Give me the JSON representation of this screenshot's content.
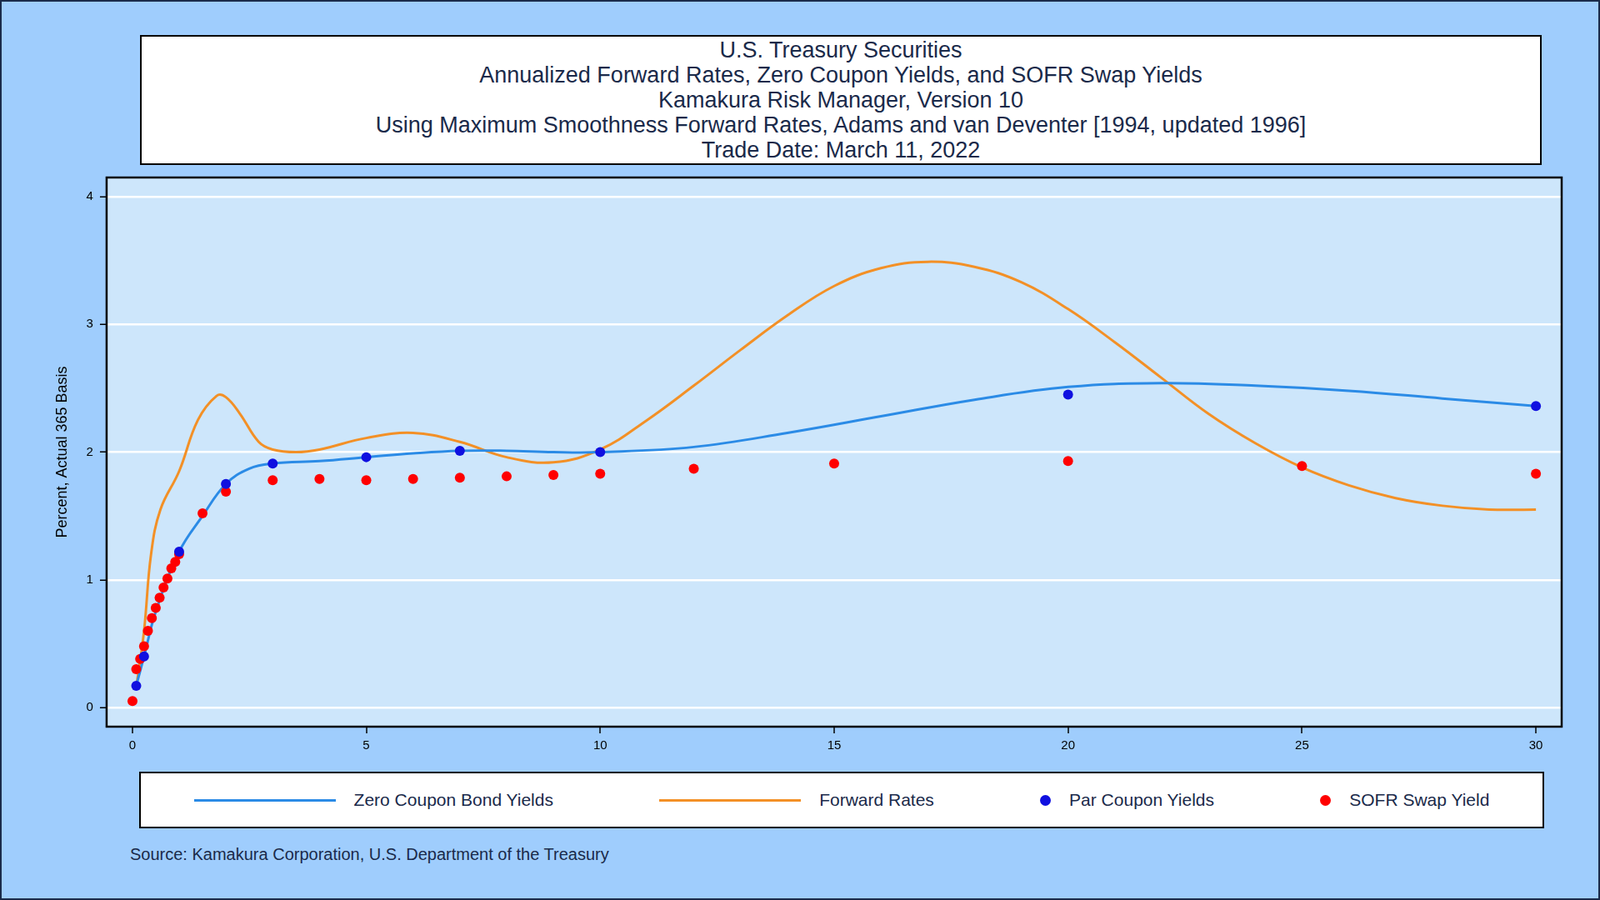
{
  "chart_data": {
    "type": "line",
    "title": [
      "U.S. Treasury Securities",
      "Annualized Forward Rates, Zero Coupon Yields, and SOFR Swap Yields",
      "Kamakura Risk Manager, Version 10",
      "Using Maximum Smoothness Forward Rates, Adams and van Deventer [1994, updated 1996]",
      "Trade Date: March 11, 2022"
    ],
    "y_label": "Percent, Actual 365 Basis",
    "source": "Source: Kamakura Corporation, U.S. Department of the Treasury",
    "xlim": [
      -0.55,
      30.55
    ],
    "xticks": [
      0,
      5,
      10,
      15,
      20,
      25,
      30
    ],
    "ylim": [
      -0.15,
      4.15
    ],
    "yticks": [
      0,
      1,
      2,
      3,
      4
    ],
    "grid": "y",
    "legend": "bottom",
    "series": [
      {
        "name": "Zero Coupon Bond Yields",
        "type": "line",
        "line_style": "solid",
        "color": "#2b8be6",
        "x": [
          0.083,
          0.25,
          0.5,
          1,
          1.5,
          2,
          2.5,
          3,
          4,
          5,
          6,
          7,
          8,
          9,
          10,
          12,
          14,
          16,
          18,
          20,
          22,
          24,
          26,
          28,
          30
        ],
        "values": [
          0.17,
          0.4,
          0.75,
          1.22,
          1.5,
          1.75,
          1.87,
          1.91,
          1.93,
          1.96,
          1.99,
          2.01,
          2.01,
          2.0,
          2.0,
          2.04,
          2.15,
          2.28,
          2.41,
          2.51,
          2.54,
          2.52,
          2.48,
          2.42,
          2.36
        ]
      },
      {
        "name": "Forward Rates",
        "type": "line",
        "line_style": "solid",
        "color": "#f39026",
        "x": [
          0.1,
          0.25,
          0.4,
          0.6,
          1,
          1.4,
          1.8,
          2,
          2.3,
          2.7,
          3,
          3.5,
          4,
          5,
          6,
          7,
          8,
          9,
          10,
          11,
          12,
          13,
          14,
          15,
          16,
          17,
          18,
          19,
          20,
          21,
          22,
          23,
          24,
          25,
          26,
          27,
          28,
          29,
          30
        ],
        "values": [
          0.2,
          0.6,
          1.2,
          1.55,
          1.85,
          2.25,
          2.44,
          2.43,
          2.3,
          2.08,
          2.02,
          2.0,
          2.02,
          2.11,
          2.15,
          2.08,
          1.96,
          1.92,
          2.02,
          2.25,
          2.52,
          2.8,
          3.07,
          3.3,
          3.44,
          3.49,
          3.45,
          3.33,
          3.12,
          2.86,
          2.58,
          2.3,
          2.07,
          1.88,
          1.74,
          1.64,
          1.58,
          1.55,
          1.55
        ]
      },
      {
        "name": "Par Coupon Yields",
        "type": "scatter",
        "marker": "circle",
        "color": "#1010e0",
        "x": [
          0.083,
          0.25,
          1,
          2,
          3,
          5,
          7,
          10,
          20,
          30
        ],
        "values": [
          0.17,
          0.4,
          1.22,
          1.75,
          1.91,
          1.96,
          2.01,
          2.0,
          2.45,
          2.36
        ]
      },
      {
        "name": "SOFR Swap Yield",
        "type": "scatter",
        "marker": "circle",
        "color": "#ff0000",
        "x": [
          0.003,
          0.083,
          0.167,
          0.25,
          0.333,
          0.417,
          0.5,
          0.583,
          0.667,
          0.75,
          0.833,
          0.917,
          1,
          1.5,
          2,
          3,
          4,
          5,
          6,
          7,
          8,
          9,
          10,
          12,
          15,
          20,
          25,
          30
        ],
        "values": [
          0.05,
          0.3,
          0.38,
          0.48,
          0.6,
          0.7,
          0.78,
          0.86,
          0.94,
          1.01,
          1.09,
          1.14,
          1.2,
          1.52,
          1.69,
          1.78,
          1.79,
          1.78,
          1.79,
          1.8,
          1.81,
          1.82,
          1.83,
          1.87,
          1.91,
          1.93,
          1.89,
          1.83
        ]
      }
    ]
  }
}
